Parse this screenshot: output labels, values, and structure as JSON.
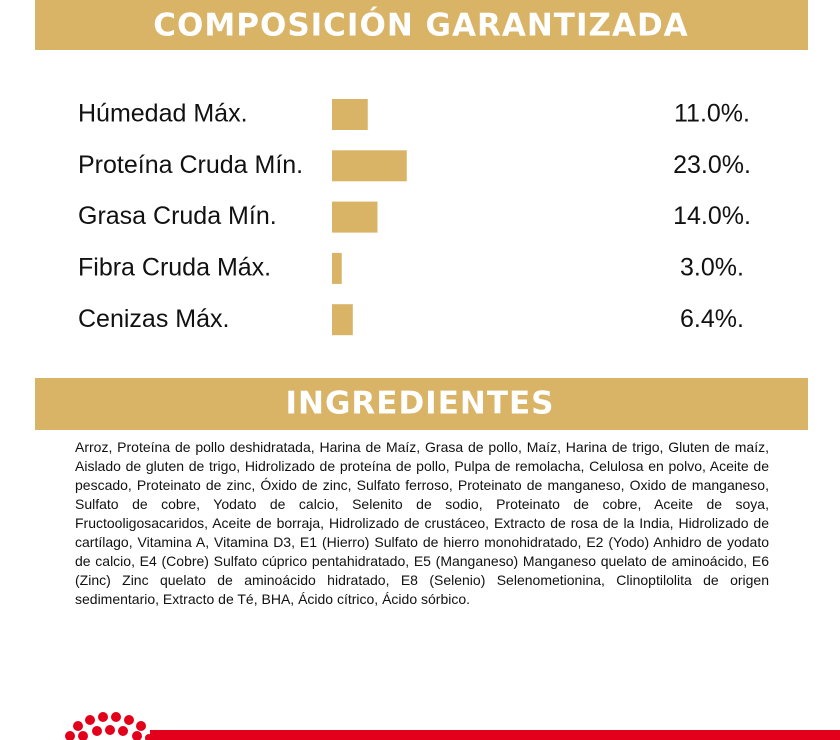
{
  "composition": {
    "title": "COMPOSICIÓN GARANTIZADA",
    "rows": [
      {
        "label": "Húmedad Máx.",
        "value": 11.0,
        "value_label": "11.0%."
      },
      {
        "label": "Proteína Cruda Mín.",
        "value": 23.0,
        "value_label": "23.0%."
      },
      {
        "label": "Grasa Cruda Mín.",
        "value": 14.0,
        "value_label": "14.0%."
      },
      {
        "label": "Fibra Cruda Máx.",
        "value": 3.0,
        "value_label": "3.0%."
      },
      {
        "label": "Cenizas Máx.",
        "value": 6.4,
        "value_label": "6.4%."
      }
    ]
  },
  "ingredients": {
    "title": "INGREDIENTES",
    "text": "Arroz, Proteína de pollo deshidratada, Harina de Maíz, Grasa de pollo, Maíz, Harina de trigo, Gluten de maíz, Aislado de gluten de trigo, Hidrolizado de proteína de pollo, Pulpa de remolacha, Celulosa en polvo, Aceite de pescado, Proteinato de zinc, Óxido de zinc, Sulfato ferroso, Proteinato de manganeso, Oxido de manganeso, Sulfato de cobre, Yodato de calcio, Selenito de sodio, Proteinato de cobre, Aceite de soya, Fructooligosacaridos, Aceite de borraja, Hidrolizado de crustáceo, Extracto de rosa de la India, Hidrolizado de cartílago, Vitamina A, Vitamina D3, E1 (Hierro) Sulfato de hierro monohidratado, E2 (Yodo) Anhidro de yodato de calcio, E4 (Cobre) Sulfato cúprico pentahidratado, E5 (Manganeso) Manganeso quelato de aminoácido, E6 (Zinc) Zinc quelato de aminoácido hidratado, E8 (Selenio) Selenometionina, Clinoptilolita de origen sedimentario, Extracto de Té, BHA, Ácido cítrico, Ácido sórbico."
  }
}
